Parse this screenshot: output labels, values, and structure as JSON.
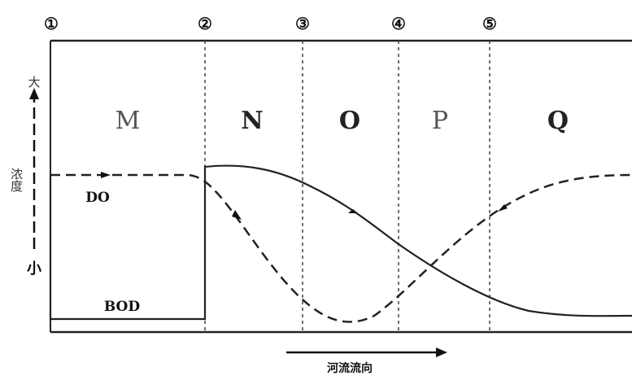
{
  "markers": [
    "①",
    "②",
    "③",
    "④",
    "⑤"
  ],
  "zones": [
    "M",
    "N",
    "O",
    "P",
    "Q"
  ],
  "yaxis": {
    "high": "大",
    "low": "小",
    "label": "浓度"
  },
  "curves": {
    "do_label": "DO",
    "bod_label": "BOD"
  },
  "flow_label": "河流流向"
}
